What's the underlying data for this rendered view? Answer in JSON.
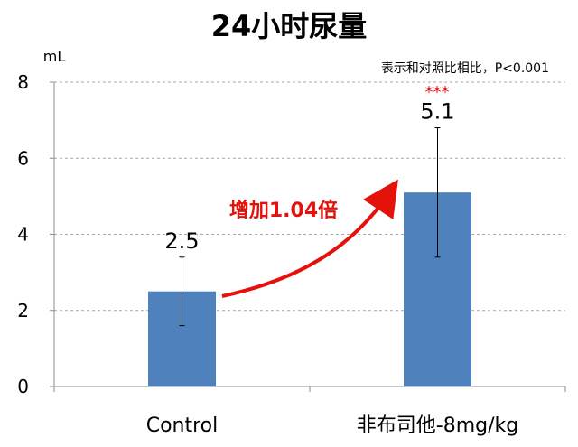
{
  "chart_data": {
    "type": "bar",
    "title": "24小时尿量",
    "ylabel": "mL",
    "categories": [
      "Control",
      "非布司他-8mg/kg"
    ],
    "values": [
      2.5,
      5.1
    ],
    "error": [
      0.9,
      1.7
    ],
    "value_labels": [
      "2.5",
      "5.1"
    ],
    "ylim": [
      0,
      8
    ],
    "yticks": [
      0,
      2,
      4,
      6,
      8
    ],
    "grid": true,
    "bar_color": "#4f81bd",
    "note": "表示和对照比相比，P<0.001",
    "significance": "***",
    "significance_color": "#e3120b",
    "annotation": "增加1.04倍",
    "annotation_color": "#e3120b"
  }
}
